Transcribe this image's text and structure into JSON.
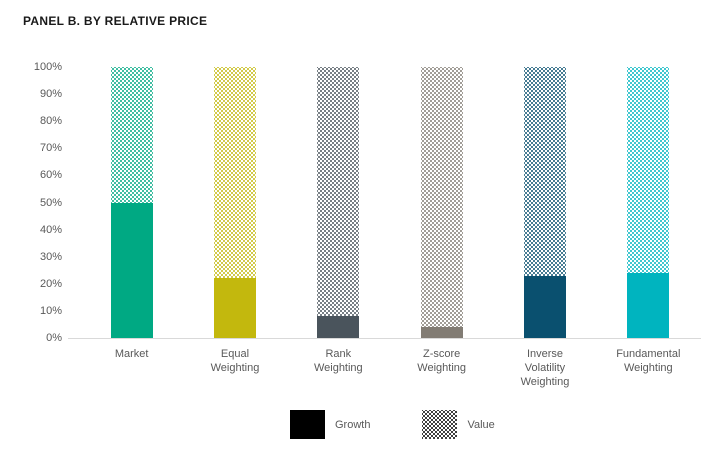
{
  "title": "PANEL B. BY RELATIVE PRICE",
  "colors": {
    "title_text": "#1a1a1a",
    "axis_text": "#595959",
    "baseline": "#d9d9d9",
    "legend_swatch": "#000000"
  },
  "chart_data": {
    "type": "bar",
    "stacked": true,
    "unit": "percent",
    "title": "PANEL B. BY RELATIVE PRICE",
    "xlabel": "",
    "ylabel": "",
    "ylim": [
      0,
      100
    ],
    "yticks": [
      0,
      10,
      20,
      30,
      40,
      50,
      60,
      70,
      80,
      90,
      100
    ],
    "ytick_suffix": "%",
    "grid": false,
    "categories": [
      "Market",
      "Equal Weighting",
      "Rank Weighting",
      "Z-score Weighting",
      "Inverse Volatility Weighting",
      "Fundamental Weighting"
    ],
    "category_lines": [
      [
        "Market"
      ],
      [
        "Equal",
        "Weighting"
      ],
      [
        "Rank",
        "Weighting"
      ],
      [
        "Z-score",
        "Weighting"
      ],
      [
        "Inverse",
        "Volatility",
        "Weighting"
      ],
      [
        "Fundamental",
        "Weighting"
      ]
    ],
    "series": [
      {
        "name": "Growth",
        "style": "solid",
        "values": [
          50,
          22,
          8,
          4,
          23,
          24
        ]
      },
      {
        "name": "Value",
        "style": "dotted-pattern",
        "values": [
          50,
          78,
          92,
          96,
          77,
          76
        ]
      }
    ],
    "bar_colors": [
      "#00A983",
      "#C3B80D",
      "#4A545C",
      "#827C74",
      "#0A506F",
      "#00B4BF"
    ],
    "legend_position": "bottom",
    "legend": [
      {
        "label": "Growth",
        "swatch": "solid-black"
      },
      {
        "label": "Value",
        "swatch": "dotted-black"
      }
    ]
  }
}
